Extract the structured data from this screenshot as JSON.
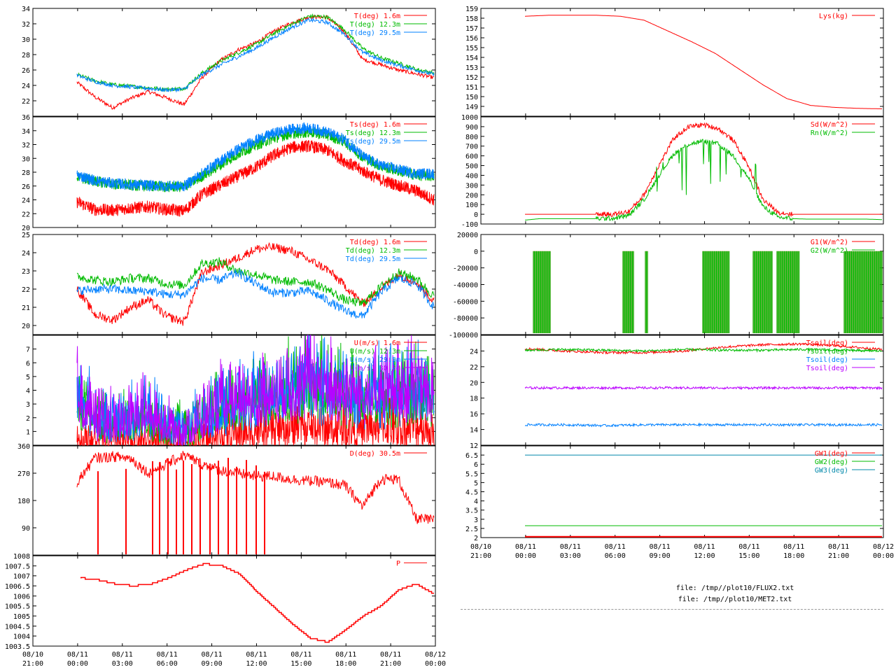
{
  "colors": {
    "red": "#ff0000",
    "green": "#00bb00",
    "blue": "#0080ff",
    "purple": "#bb00ff",
    "teal": "#0088aa"
  },
  "left_time_ticks": [
    [
      "08/10",
      "21:00"
    ],
    [
      "08/11",
      "00:00"
    ],
    [
      "08/11",
      "03:00"
    ],
    [
      "08/11",
      "06:00"
    ],
    [
      "08/11",
      "09:00"
    ],
    [
      "08/11",
      "12:00"
    ],
    [
      "08/11",
      "15:00"
    ],
    [
      "08/11",
      "18:00"
    ],
    [
      "08/11",
      "21:00"
    ],
    [
      "08/12",
      "00:00"
    ]
  ],
  "right_time_ticks": [
    [
      "08/10",
      "21:00"
    ],
    [
      "08/11",
      "00:00"
    ],
    [
      "08/11",
      "03:00"
    ],
    [
      "08/11",
      "06:00"
    ],
    [
      "08/11",
      "09:00"
    ],
    [
      "08/11",
      "12:00"
    ],
    [
      "08/11",
      "15:00"
    ],
    [
      "08/11",
      "18:00"
    ],
    [
      "08/11",
      "21:00"
    ],
    [
      "08/12",
      "00:00"
    ]
  ],
  "footer": {
    "file1": "file: /tmp//plot10/FLUX2.txt",
    "file2": "file: /tmp//plot10/MET2.txt"
  },
  "chart_data": [
    {
      "id": "T",
      "type": "line",
      "ylim": [
        20,
        34
      ],
      "yticks": [
        "22",
        "24",
        "26",
        "28",
        "30",
        "32",
        "34"
      ],
      "series": [
        {
          "name": "T(deg)  1.6m",
          "color": "red",
          "values": [
            24.4,
            22.5,
            21.1,
            22.3,
            23.2,
            22.4,
            21.5,
            25.0,
            27.2,
            28.6,
            29.5,
            31.0,
            32.1,
            32.9,
            32.9,
            30.9,
            27.4,
            26.7,
            26.0,
            25.5,
            25.0
          ]
        },
        {
          "name": "T(deg) 12.3m",
          "color": "green",
          "values": [
            25.4,
            24.6,
            24.1,
            23.9,
            23.7,
            23.5,
            23.6,
            25.6,
            27.1,
            28.2,
            29.3,
            30.7,
            31.9,
            33.0,
            32.9,
            31.2,
            28.8,
            27.6,
            26.9,
            26.1,
            25.6
          ]
        },
        {
          "name": "T(deg) 29.5m",
          "color": "blue",
          "values": [
            25.3,
            24.5,
            24.0,
            23.8,
            23.6,
            23.4,
            23.5,
            25.4,
            26.6,
            27.7,
            28.8,
            30.2,
            31.5,
            32.5,
            32.2,
            30.6,
            28.3,
            27.3,
            26.6,
            26.0,
            25.4
          ]
        }
      ]
    },
    {
      "id": "Ts",
      "type": "line",
      "ylim": [
        20,
        36
      ],
      "yticks": [
        "20",
        "22",
        "24",
        "26",
        "28",
        "30",
        "32",
        "34",
        "36"
      ],
      "series": [
        {
          "name": "Ts(deg)  1.6m",
          "color": "red",
          "values": [
            23.7,
            22.6,
            22.5,
            22.8,
            23.0,
            22.6,
            22.4,
            24.8,
            26.1,
            27.4,
            28.7,
            30.4,
            31.6,
            31.8,
            31.2,
            29.6,
            28.2,
            26.9,
            26.1,
            25.3,
            24.0
          ]
        },
        {
          "name": "Ts(deg) 12.3m",
          "color": "green",
          "values": [
            27.3,
            26.7,
            26.3,
            26.1,
            26.0,
            25.9,
            25.9,
            27.4,
            29.0,
            30.6,
            31.9,
            32.9,
            33.6,
            33.8,
            33.4,
            32.4,
            30.2,
            28.9,
            28.2,
            27.6,
            27.4
          ]
        },
        {
          "name": "Ts(deg) 29.5m",
          "color": "blue",
          "values": [
            27.6,
            26.8,
            26.4,
            26.2,
            26.1,
            26.0,
            26.0,
            27.8,
            29.6,
            31.3,
            32.6,
            33.6,
            34.2,
            34.4,
            33.8,
            32.7,
            30.3,
            29.0,
            28.4,
            27.8,
            27.8
          ]
        }
      ]
    },
    {
      "id": "Td",
      "type": "line",
      "ylim": [
        19.5,
        25
      ],
      "yticks": [
        "20",
        "21",
        "22",
        "23",
        "24",
        "25"
      ],
      "series": [
        {
          "name": "Td(deg)  1.6m",
          "color": "red",
          "values": [
            22.0,
            20.6,
            20.3,
            21.0,
            21.4,
            20.5,
            20.2,
            22.9,
            23.3,
            23.7,
            24.2,
            24.3,
            24.1,
            23.6,
            23.1,
            22.2,
            21.2,
            22.0,
            22.8,
            22.4,
            21.3
          ]
        },
        {
          "name": "Td(deg) 12.3m",
          "color": "green",
          "values": [
            22.7,
            22.5,
            22.4,
            22.6,
            22.6,
            22.3,
            22.2,
            23.4,
            23.5,
            23.0,
            22.8,
            22.5,
            22.4,
            22.4,
            22.0,
            21.4,
            21.2,
            22.1,
            22.9,
            22.6,
            21.6
          ]
        },
        {
          "name": "Td(deg) 29.5m",
          "color": "blue",
          "values": [
            21.9,
            22.0,
            22.0,
            21.9,
            21.9,
            21.7,
            21.7,
            22.6,
            22.5,
            22.9,
            22.3,
            21.8,
            21.8,
            21.9,
            21.4,
            20.8,
            20.5,
            21.8,
            22.6,
            22.3,
            21.0
          ]
        }
      ]
    },
    {
      "id": "U",
      "type": "line",
      "ylim": [
        0,
        8
      ],
      "yticks": [
        "1",
        "2",
        "3",
        "4",
        "5",
        "6",
        "7"
      ],
      "series": [
        {
          "name": "U(m/s)  1.6m",
          "color": "red",
          "values": [
            0.4,
            0.3,
            0.3,
            0.3,
            0.3,
            0.2,
            0.3,
            0.5,
            0.6,
            0.8,
            0.9,
            1.0,
            1.1,
            1.2,
            1.0,
            1.1,
            1.0,
            1.2,
            1.0,
            1.1,
            0.9
          ]
        },
        {
          "name": "U(m/s) 12.3m",
          "color": "green",
          "values": [
            2.8,
            1.5,
            1.2,
            1.4,
            1.6,
            1.2,
            1.0,
            1.4,
            2.0,
            2.3,
            2.6,
            2.9,
            3.2,
            3.6,
            3.1,
            3.0,
            2.8,
            2.9,
            3.0,
            3.2,
            2.8
          ]
        },
        {
          "name": "U(m/s) 29.5m",
          "color": "blue",
          "values": [
            3.0,
            1.7,
            1.3,
            1.6,
            1.8,
            1.3,
            1.1,
            1.5,
            2.1,
            2.4,
            2.7,
            3.0,
            3.3,
            3.8,
            3.3,
            3.1,
            2.9,
            3.0,
            3.1,
            3.3,
            2.9
          ]
        },
        {
          "name": "U(m/s) 30.5m",
          "color": "purple",
          "values": [
            3.1,
            1.6,
            1.2,
            1.7,
            1.9,
            1.2,
            1.0,
            1.5,
            2.2,
            2.6,
            2.8,
            3.0,
            3.4,
            4.0,
            3.4,
            3.2,
            3.0,
            3.1,
            3.3,
            3.5,
            3.0
          ]
        }
      ]
    },
    {
      "id": "D",
      "type": "line",
      "ylim": [
        0,
        360
      ],
      "yticks": [
        "90",
        "180",
        "270",
        "360"
      ],
      "series": [
        {
          "name": "D(deg)  30.5m",
          "color": "red",
          "values": [
            240,
            320,
            325,
            320,
            270,
            300,
            330,
            300,
            280,
            270,
            260,
            260,
            250,
            245,
            240,
            230,
            160,
            250,
            250,
            120,
            115
          ]
        }
      ]
    },
    {
      "id": "P",
      "type": "line",
      "ylim": [
        1003.5,
        1008
      ],
      "yticks": [
        "1003.5",
        "1004",
        "1004.5",
        "1005",
        "1005.5",
        "1006",
        "1006.5",
        "1007",
        "1007.5",
        "1008"
      ],
      "series": [
        {
          "name": "P",
          "color": "red",
          "values": [
            1006.9,
            1006.8,
            1006.6,
            1006.5,
            1006.6,
            1006.9,
            1007.3,
            1007.6,
            1007.5,
            1007.1,
            1006.2,
            1005.4,
            1004.6,
            1003.9,
            1003.7,
            1004.3,
            1005.0,
            1005.5,
            1006.3,
            1006.6,
            1006.1
          ]
        }
      ]
    },
    {
      "id": "Lys",
      "type": "line",
      "ylim": [
        148,
        159
      ],
      "yticks": [
        "149",
        "150",
        "151",
        "152",
        "153",
        "154",
        "155",
        "156",
        "157",
        "158",
        "159"
      ],
      "series": [
        {
          "name": "Lys(kg)",
          "color": "red",
          "values": [
            158.2,
            158.3,
            158.3,
            158.3,
            158.2,
            157.8,
            156.7,
            155.6,
            154.4,
            152.8,
            151.2,
            149.8,
            149.1,
            148.9,
            148.8,
            148.75
          ]
        }
      ]
    },
    {
      "id": "Rad",
      "type": "line",
      "ylim": [
        -100,
        1000
      ],
      "yticks": [
        "-100",
        "0",
        "100",
        "200",
        "300",
        "400",
        "500",
        "600",
        "700",
        "800",
        "900",
        "1000"
      ],
      "series": [
        {
          "name": "Sd(W/m^2)",
          "color": "red",
          "values": [
            0,
            0,
            0,
            0,
            0,
            0,
            0,
            30,
            200,
            500,
            780,
            900,
            920,
            880,
            760,
            500,
            150,
            20,
            0,
            0,
            0,
            0,
            0,
            0,
            0
          ]
        },
        {
          "name": "Rn(W/m^2)",
          "color": "green",
          "values": [
            -60,
            -45,
            -45,
            -45,
            -45,
            -45,
            -40,
            -10,
            150,
            400,
            620,
            720,
            750,
            720,
            600,
            380,
            80,
            -30,
            -45,
            -50,
            -50,
            -50,
            -50,
            -50,
            -55
          ]
        }
      ]
    },
    {
      "id": "G",
      "type": "line",
      "ylim": [
        -100000,
        20000
      ],
      "yticks": [
        "-100000",
        "-80000",
        "-60000",
        "-40000",
        "-20000",
        "0",
        "20000"
      ],
      "series": [
        {
          "name": "G1(W/m^2)",
          "color": "red",
          "values": [
            0,
            0
          ]
        },
        {
          "name": "G2(W/m^2)",
          "color": "green",
          "values": [
            0,
            0
          ]
        }
      ]
    },
    {
      "id": "Tsoil",
      "type": "line",
      "ylim": [
        12,
        26
      ],
      "yticks": [
        "12",
        "14",
        "16",
        "18",
        "20",
        "22",
        "24"
      ],
      "series": [
        {
          "name": "Tsoil(deg)",
          "color": "red",
          "values": [
            24.3,
            24.0,
            23.8,
            23.8,
            24.0,
            24.5,
            24.8,
            24.9,
            24.6,
            24.2
          ]
        },
        {
          "name": "Tsoil(deg)",
          "color": "green",
          "values": [
            24.1,
            24.2,
            24.1,
            24.0,
            24.2,
            24.1,
            24.1,
            24.2,
            24.1,
            24.0
          ]
        },
        {
          "name": "Tsoil(deg)",
          "color": "blue",
          "values": [
            14.6,
            14.6,
            14.5,
            14.6,
            14.6,
            14.6,
            14.6,
            14.6,
            14.6,
            14.6
          ]
        },
        {
          "name": "Tsoil(deg)",
          "color": "purple",
          "values": [
            19.3,
            19.3,
            19.3,
            19.3,
            19.3,
            19.3,
            19.3,
            19.3,
            19.3,
            19.3
          ]
        }
      ]
    },
    {
      "id": "GW",
      "type": "line",
      "ylim": [
        2,
        7
      ],
      "yticks": [
        "2",
        "2.5",
        "3",
        "3.5",
        "4",
        "4.5",
        "5",
        "5.5",
        "6",
        "6.5"
      ],
      "series": [
        {
          "name": "GW1(deg)",
          "color": "red",
          "values": [
            2.05,
            2.05
          ]
        },
        {
          "name": "GW2(deg)",
          "color": "green",
          "values": [
            2.65,
            2.65
          ]
        },
        {
          "name": "GW3(deg)",
          "color": "teal",
          "values": [
            6.5,
            6.5
          ]
        }
      ]
    }
  ]
}
